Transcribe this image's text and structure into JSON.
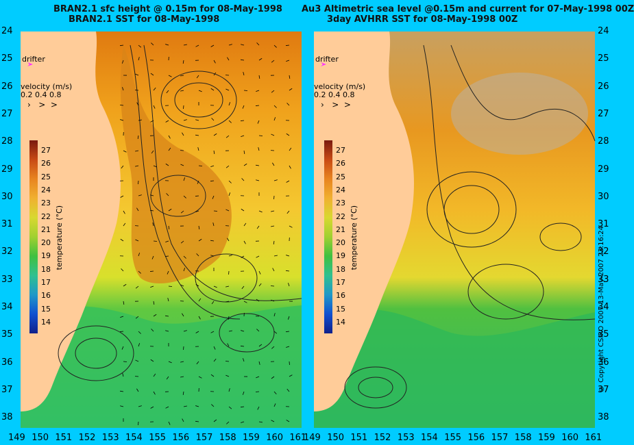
{
  "left_panel": {
    "title_line1": "BRAN2.1 sfc height @ 0.15m for 08-May-1998",
    "title_line2": "BRAN2.1 SST for 08-May-1998"
  },
  "right_panel": {
    "title_line1": "Au3 Altimetric sea level  @0.15m and current for 07-May-1998 00Z",
    "title_line2": "3day AVHRR SST for 08-May-1998 00Z"
  },
  "legend": {
    "drifter_label": "drifter",
    "velocity_label": "velocity (m/s)",
    "velocity_scale": "0.2 0.4 0.8"
  },
  "colorbar": {
    "label": "temperature (°C)",
    "ticks": [
      "27",
      "26",
      "25",
      "24",
      "23",
      "22",
      "21",
      "20",
      "19",
      "18",
      "17",
      "16",
      "15",
      "14"
    ],
    "min": 14,
    "max": 27
  },
  "y_axis": {
    "ticks": [
      "24",
      "25",
      "26",
      "27",
      "28",
      "29",
      "30",
      "31",
      "32",
      "33",
      "34",
      "35",
      "36",
      "37",
      "38"
    ]
  },
  "x_axis_left": {
    "ticks": [
      "149",
      "150",
      "151",
      "152",
      "153",
      "154",
      "155",
      "156",
      "157",
      "158",
      "159",
      "160",
      "161"
    ]
  },
  "x_axis_right": {
    "ticks": [
      "149",
      "150",
      "151",
      "152",
      "153",
      "154",
      "155",
      "156",
      "157",
      "158",
      "159",
      "160",
      "161"
    ]
  },
  "copyright": "© Copyright CSIRO 2007   13-May-2007 23:16:24",
  "colors": {
    "background": "#00ccff",
    "land": "#ffcc99",
    "drifter": "#ff33ff"
  }
}
